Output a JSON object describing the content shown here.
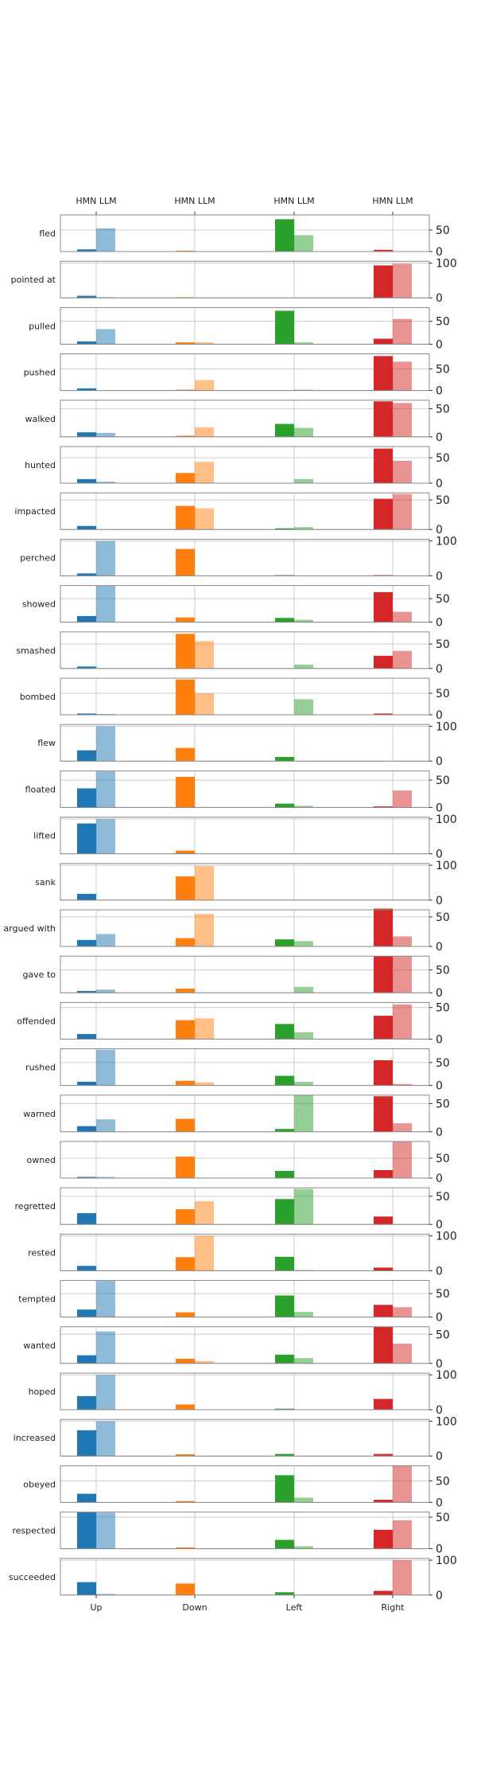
{
  "chart_data": {
    "type": "bar",
    "categories": [
      "Up",
      "Down",
      "Left",
      "Right"
    ],
    "top_axis_label": "HMN LLM",
    "series": [
      {
        "name": "HMN",
        "opacity": 1.0
      },
      {
        "name": "LLM",
        "opacity": 0.5
      }
    ],
    "colors": {
      "Up": "#1f77b4",
      "Down": "#ff7f0e",
      "Left": "#2ca02c",
      "Right": "#d62728"
    },
    "grid": "vertical",
    "rows": [
      {
        "label": "fled",
        "ylim": [
          0,
          85
        ],
        "yticks": [
          0,
          50
        ],
        "hmn": [
          5,
          2,
          75,
          4
        ],
        "llm": [
          54,
          0,
          38,
          0
        ]
      },
      {
        "label": "pointed at",
        "ylim": [
          0,
          105
        ],
        "yticks": [
          0,
          100
        ],
        "hmn": [
          6,
          2,
          0,
          93
        ],
        "llm": [
          2,
          0,
          0,
          98
        ]
      },
      {
        "label": "pulled",
        "ylim": [
          0,
          80
        ],
        "yticks": [
          0,
          50
        ],
        "hmn": [
          6,
          4,
          73,
          12
        ],
        "llm": [
          33,
          4,
          4,
          55
        ]
      },
      {
        "label": "pushed",
        "ylim": [
          0,
          85
        ],
        "yticks": [
          0,
          50
        ],
        "hmn": [
          5,
          2,
          0,
          80
        ],
        "llm": [
          0,
          24,
          2,
          67
        ]
      },
      {
        "label": "walked",
        "ylim": [
          0,
          65
        ],
        "yticks": [
          0,
          50
        ],
        "hmn": [
          8,
          2,
          23,
          63
        ],
        "llm": [
          7,
          17,
          16,
          60
        ]
      },
      {
        "label": "hunted",
        "ylim": [
          0,
          72
        ],
        "yticks": [
          0,
          50
        ],
        "hmn": [
          8,
          20,
          0,
          68
        ],
        "llm": [
          3,
          42,
          8,
          44
        ]
      },
      {
        "label": "impacted",
        "ylim": [
          0,
          62
        ],
        "yticks": [
          0,
          50
        ],
        "hmn": [
          6,
          40,
          2,
          52
        ],
        "llm": [
          0,
          36,
          4,
          60
        ]
      },
      {
        "label": "perched",
        "ylim": [
          0,
          105
        ],
        "yticks": [
          0,
          100
        ],
        "hmn": [
          7,
          77,
          2,
          2
        ],
        "llm": [
          100,
          0,
          0,
          0
        ]
      },
      {
        "label": "showed",
        "ylim": [
          0,
          78
        ],
        "yticks": [
          0,
          50
        ],
        "hmn": [
          13,
          10,
          9,
          64
        ],
        "llm": [
          78,
          0,
          5,
          22
        ]
      },
      {
        "label": "smashed",
        "ylim": [
          0,
          75
        ],
        "yticks": [
          0,
          50
        ],
        "hmn": [
          4,
          71,
          0,
          26
        ],
        "llm": [
          0,
          56,
          8,
          36
        ]
      },
      {
        "label": "bombed",
        "ylim": [
          0,
          85
        ],
        "yticks": [
          0,
          50
        ],
        "hmn": [
          3,
          82,
          0,
          3
        ],
        "llm": [
          2,
          50,
          36,
          0
        ]
      },
      {
        "label": "flew",
        "ylim": [
          0,
          105
        ],
        "yticks": [
          0,
          100
        ],
        "hmn": [
          31,
          38,
          12,
          0
        ],
        "llm": [
          100,
          0,
          0,
          0
        ]
      },
      {
        "label": "floated",
        "ylim": [
          0,
          67
        ],
        "yticks": [
          0,
          50
        ],
        "hmn": [
          35,
          56,
          7,
          2
        ],
        "llm": [
          66,
          0,
          3,
          31
        ]
      },
      {
        "label": "lifted",
        "ylim": [
          0,
          105
        ],
        "yticks": [
          0,
          100
        ],
        "hmn": [
          87,
          9,
          0,
          0
        ],
        "llm": [
          100,
          0,
          0,
          0
        ]
      },
      {
        "label": "sank",
        "ylim": [
          0,
          105
        ],
        "yticks": [
          0,
          100
        ],
        "hmn": [
          18,
          68,
          0,
          0
        ],
        "llm": [
          0,
          98,
          0,
          0
        ]
      },
      {
        "label": "argued with",
        "ylim": [
          0,
          62
        ],
        "yticks": [
          0,
          50
        ],
        "hmn": [
          11,
          14,
          12,
          64
        ],
        "llm": [
          21,
          55,
          9,
          17
        ]
      },
      {
        "label": "gave to",
        "ylim": [
          0,
          80
        ],
        "yticks": [
          0,
          50
        ],
        "hmn": [
          4,
          9,
          0,
          80
        ],
        "llm": [
          7,
          0,
          13,
          80
        ]
      },
      {
        "label": "offended",
        "ylim": [
          0,
          58
        ],
        "yticks": [
          0,
          50
        ],
        "hmn": [
          8,
          30,
          24,
          37
        ],
        "llm": [
          0,
          33,
          11,
          55
        ]
      },
      {
        "label": "rushed",
        "ylim": [
          0,
          80
        ],
        "yticks": [
          0,
          50
        ],
        "hmn": [
          8,
          10,
          21,
          55
        ],
        "llm": [
          78,
          7,
          8,
          3
        ]
      },
      {
        "label": "warned",
        "ylim": [
          0,
          65
        ],
        "yticks": [
          0,
          50
        ],
        "hmn": [
          10,
          23,
          5,
          63
        ],
        "llm": [
          22,
          0,
          65,
          15
        ]
      },
      {
        "label": "owned",
        "ylim": [
          0,
          92
        ],
        "yticks": [
          0,
          50
        ],
        "hmn": [
          3,
          54,
          18,
          20
        ],
        "llm": [
          3,
          0,
          0,
          92
        ]
      },
      {
        "label": "regretted",
        "ylim": [
          0,
          65
        ],
        "yticks": [
          0,
          50
        ],
        "hmn": [
          20,
          27,
          45,
          14
        ],
        "llm": [
          0,
          41,
          63,
          0
        ]
      },
      {
        "label": "rested",
        "ylim": [
          0,
          105
        ],
        "yticks": [
          0,
          100
        ],
        "hmn": [
          14,
          39,
          40,
          9
        ],
        "llm": [
          0,
          100,
          2,
          0
        ]
      },
      {
        "label": "tempted",
        "ylim": [
          0,
          78
        ],
        "yticks": [
          0,
          50
        ],
        "hmn": [
          16,
          10,
          46,
          26
        ],
        "llm": [
          77,
          0,
          11,
          21
        ]
      },
      {
        "label": "wanted",
        "ylim": [
          0,
          63
        ],
        "yticks": [
          0,
          50
        ],
        "hmn": [
          14,
          8,
          15,
          63
        ],
        "llm": [
          55,
          4,
          9,
          34
        ]
      },
      {
        "label": "hoped",
        "ylim": [
          0,
          105
        ],
        "yticks": [
          0,
          100
        ],
        "hmn": [
          39,
          15,
          3,
          31
        ],
        "llm": [
          100,
          0,
          0,
          0
        ]
      },
      {
        "label": "increased",
        "ylim": [
          0,
          105
        ],
        "yticks": [
          0,
          100
        ],
        "hmn": [
          74,
          5,
          6,
          6
        ],
        "llm": [
          100,
          0,
          0,
          0
        ]
      },
      {
        "label": "obeyed",
        "ylim": [
          0,
          85
        ],
        "yticks": [
          0,
          50
        ],
        "hmn": [
          20,
          3,
          63,
          6
        ],
        "llm": [
          0,
          0,
          11,
          85
        ]
      },
      {
        "label": "respected",
        "ylim": [
          0,
          58
        ],
        "yticks": [
          0,
          50
        ],
        "hmn": [
          58,
          2,
          14,
          30
        ],
        "llm": [
          57,
          0,
          4,
          45
        ]
      },
      {
        "label": "succeeded",
        "ylim": [
          0,
          105
        ],
        "yticks": [
          0,
          100
        ],
        "hmn": [
          37,
          33,
          8,
          12
        ],
        "llm": [
          3,
          0,
          0,
          100
        ]
      }
    ]
  }
}
